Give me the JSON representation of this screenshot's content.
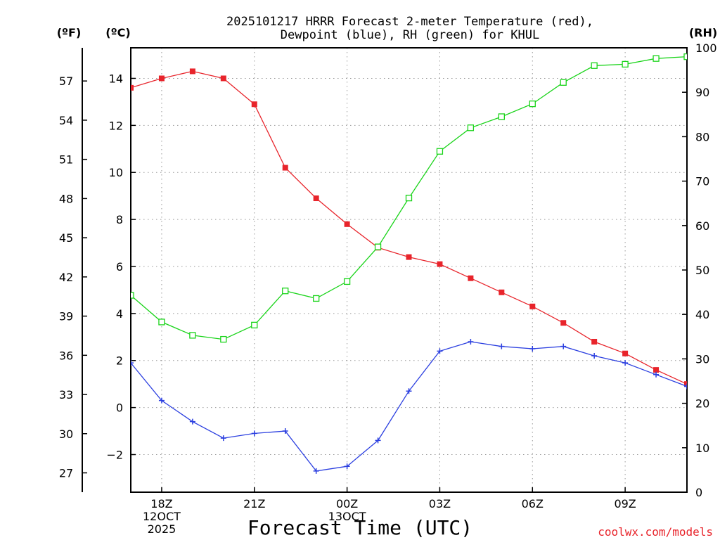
{
  "chart_data": {
    "type": "line",
    "title_line1": "2025101217 HRRR Forecast 2-meter Temperature (red),",
    "title_line2": "Dewpoint (blue), RH (green) for KHUL",
    "xlabel": "Forecast Time (UTC)",
    "credit": "coolwx.com/models",
    "units": {
      "fahrenheit": "(ºF)",
      "celsius": "(ºC)",
      "rh": "(RH)"
    },
    "x_hours": [
      17,
      18,
      19,
      20,
      21,
      22,
      23,
      24,
      25,
      26,
      27,
      28,
      29,
      30,
      31,
      32,
      33,
      34,
      35
    ],
    "x_range": [
      17,
      35
    ],
    "x_ticks": [
      {
        "hour": 18,
        "lines": [
          "18Z",
          "12OCT",
          "2025"
        ]
      },
      {
        "hour": 21,
        "lines": [
          "21Z"
        ]
      },
      {
        "hour": 24,
        "lines": [
          "00Z",
          "13OCT"
        ]
      },
      {
        "hour": 27,
        "lines": [
          "03Z"
        ]
      },
      {
        "hour": 30,
        "lines": [
          "06Z"
        ]
      },
      {
        "hour": 33,
        "lines": [
          "09Z"
        ]
      }
    ],
    "celsius_axis": {
      "min": -3.6,
      "max": 15.3,
      "ticks": [
        -2,
        0,
        2,
        4,
        6,
        8,
        10,
        12,
        14
      ],
      "tick_labels": [
        "−2",
        "0",
        "2",
        "4",
        "6",
        "8",
        "10",
        "12",
        "14"
      ]
    },
    "fahrenheit_axis": {
      "ticks": [
        27,
        30,
        33,
        36,
        39,
        42,
        45,
        48,
        51,
        54,
        57
      ]
    },
    "rh_axis": {
      "min": 0,
      "max": 100,
      "ticks": [
        0,
        10,
        20,
        30,
        40,
        50,
        60,
        70,
        80,
        90,
        100
      ]
    },
    "series": [
      {
        "name": "Temperature",
        "unit": "C",
        "color": "#e8242b",
        "marker": "filled-square",
        "values": [
          13.6,
          14.0,
          14.3,
          14.0,
          12.9,
          10.2,
          8.9,
          7.8,
          6.8,
          6.4,
          6.1,
          5.5,
          4.9,
          4.3,
          3.6,
          2.8,
          2.3,
          1.6,
          1.0
        ]
      },
      {
        "name": "Dewpoint",
        "unit": "C",
        "color": "#2b3fe0",
        "marker": "plus",
        "values": [
          1.9,
          0.3,
          -0.6,
          -1.3,
          -1.1,
          -1.0,
          -2.7,
          -2.5,
          -1.4,
          0.7,
          2.4,
          2.8,
          2.6,
          2.5,
          2.6,
          2.2,
          1.9,
          1.4,
          0.9
        ]
      },
      {
        "name": "RH",
        "unit": "%",
        "color": "#1ad41a",
        "marker": "open-square",
        "values": [
          44.3,
          38.3,
          35.3,
          34.4,
          37.6,
          45.3,
          43.6,
          47.4,
          55.2,
          66.2,
          76.7,
          82.0,
          84.5,
          87.4,
          92.2,
          96.0,
          96.3,
          97.6,
          98.0
        ]
      }
    ]
  }
}
